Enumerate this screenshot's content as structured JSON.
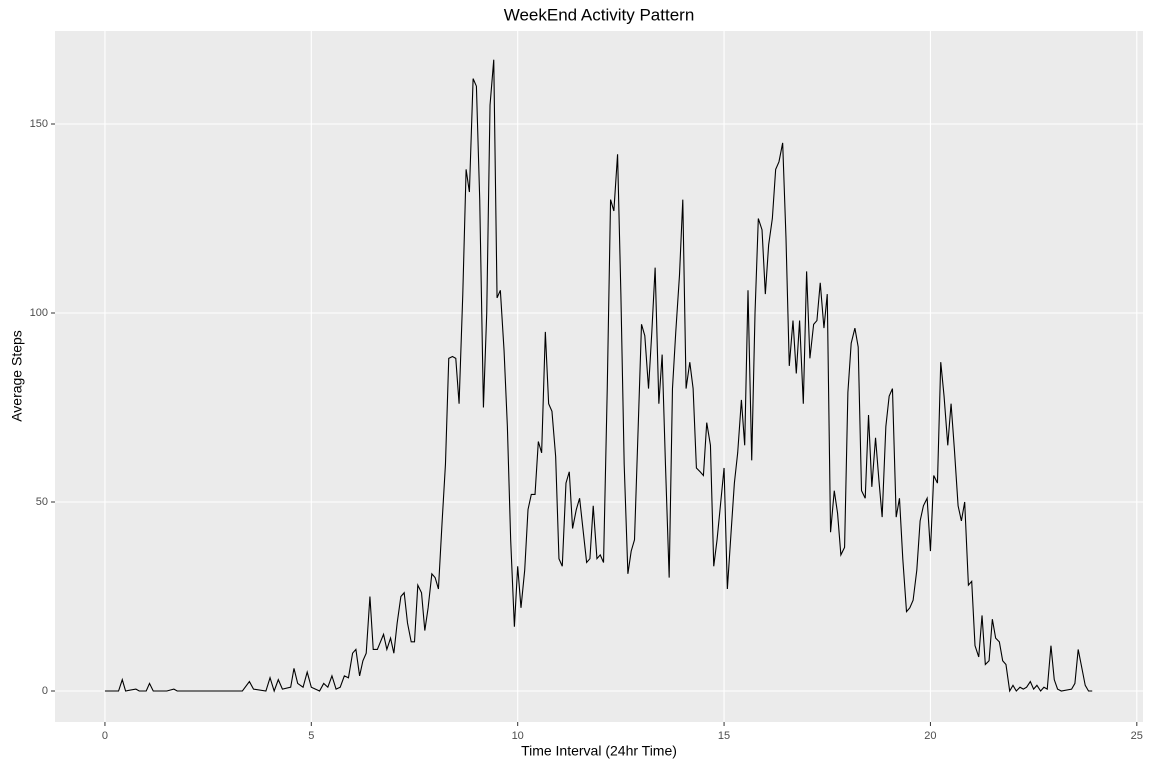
{
  "chart_data": {
    "type": "line",
    "title": "WeekEnd Activity Pattern",
    "x_label": "Time Interval (24hr Time)",
    "y_label": "Average Steps",
    "color": "#000000",
    "grid": true,
    "xlim": [
      -1.21,
      25.15
    ],
    "ylim": [
      -8.2,
      174.6
    ],
    "xticks": [
      0,
      5,
      10,
      15,
      20,
      25
    ],
    "yticks": [
      0,
      50,
      100,
      150
    ],
    "x": [
      0,
      0.33,
      0.42,
      0.5,
      0.75,
      0.83,
      1.0,
      1.08,
      1.17,
      1.5,
      1.67,
      1.75,
      2.0,
      3.33,
      3.5,
      3.6,
      3.9,
      4.0,
      4.1,
      4.2,
      4.3,
      4.5,
      4.58,
      4.67,
      4.8,
      4.9,
      5.0,
      5.2,
      5.3,
      5.4,
      5.5,
      5.6,
      5.7,
      5.8,
      5.9,
      6.0,
      6.08,
      6.17,
      6.25,
      6.33,
      6.42,
      6.5,
      6.6,
      6.75,
      6.83,
      6.92,
      7.0,
      7.08,
      7.17,
      7.25,
      7.33,
      7.42,
      7.5,
      7.58,
      7.67,
      7.75,
      7.83,
      7.92,
      8.0,
      8.08,
      8.17,
      8.25,
      8.33,
      8.42,
      8.5,
      8.58,
      8.67,
      8.75,
      8.83,
      8.92,
      9.0,
      9.08,
      9.17,
      9.25,
      9.33,
      9.42,
      9.5,
      9.58,
      9.67,
      9.75,
      9.83,
      9.92,
      10.0,
      10.08,
      10.17,
      10.25,
      10.33,
      10.42,
      10.5,
      10.58,
      10.67,
      10.75,
      10.83,
      10.92,
      11.0,
      11.08,
      11.17,
      11.25,
      11.33,
      11.42,
      11.5,
      11.58,
      11.67,
      11.75,
      11.83,
      11.92,
      12.0,
      12.08,
      12.17,
      12.25,
      12.33,
      12.42,
      12.5,
      12.58,
      12.67,
      12.75,
      12.83,
      12.92,
      13.0,
      13.08,
      13.17,
      13.25,
      13.33,
      13.42,
      13.5,
      13.58,
      13.67,
      13.75,
      13.83,
      13.92,
      14.0,
      14.08,
      14.17,
      14.25,
      14.33,
      14.42,
      14.5,
      14.58,
      14.67,
      14.75,
      14.83,
      14.92,
      15.0,
      15.08,
      15.17,
      15.25,
      15.33,
      15.42,
      15.5,
      15.58,
      15.67,
      15.75,
      15.83,
      15.92,
      16.0,
      16.08,
      16.17,
      16.25,
      16.33,
      16.42,
      16.5,
      16.58,
      16.67,
      16.75,
      16.83,
      16.92,
      17.0,
      17.08,
      17.17,
      17.25,
      17.33,
      17.42,
      17.5,
      17.58,
      17.67,
      17.75,
      17.83,
      17.92,
      18.0,
      18.08,
      18.17,
      18.25,
      18.33,
      18.42,
      18.5,
      18.58,
      18.67,
      18.75,
      18.83,
      18.92,
      19.0,
      19.08,
      19.17,
      19.25,
      19.33,
      19.42,
      19.5,
      19.58,
      19.67,
      19.75,
      19.83,
      19.92,
      20.0,
      20.08,
      20.17,
      20.25,
      20.33,
      20.42,
      20.5,
      20.58,
      20.67,
      20.75,
      20.83,
      20.92,
      21.0,
      21.08,
      21.17,
      21.25,
      21.33,
      21.42,
      21.5,
      21.58,
      21.67,
      21.75,
      21.83,
      21.92,
      22.0,
      22.08,
      22.17,
      22.25,
      22.33,
      22.42,
      22.5,
      22.58,
      22.67,
      22.75,
      22.83,
      22.92,
      23.0,
      23.08,
      23.17,
      23.42,
      23.5,
      23.58,
      23.67,
      23.75,
      23.83,
      23.92
    ],
    "values": [
      0,
      0,
      3,
      0,
      0.5,
      0,
      0,
      2,
      0,
      0,
      0.5,
      0,
      0,
      0,
      2.5,
      0.5,
      0,
      3.5,
      0,
      3,
      0.5,
      1,
      6,
      2,
      1,
      5,
      1,
      0,
      2,
      1,
      4,
      0.5,
      1,
      4,
      3.5,
      10,
      11,
      4,
      8,
      10,
      25,
      11,
      11,
      15,
      11,
      14,
      10,
      18,
      25,
      26,
      18,
      13,
      13,
      28,
      26,
      16,
      22,
      31,
      30,
      27,
      45,
      60,
      88,
      88.5,
      88,
      76,
      105,
      138,
      132,
      162,
      160,
      130,
      75,
      100,
      155,
      167,
      104,
      106,
      90,
      70,
      40,
      17,
      33,
      22,
      32,
      48,
      52,
      52,
      66,
      63,
      95,
      76,
      74,
      62,
      35,
      33,
      55,
      58,
      43,
      48,
      51,
      43,
      34,
      35,
      49,
      35,
      36,
      34,
      80,
      130,
      127,
      142,
      105,
      60,
      31,
      37,
      40,
      70,
      97,
      94,
      80,
      95,
      112,
      76,
      89,
      60,
      30,
      80,
      95,
      110,
      130,
      80,
      87,
      80,
      59,
      58,
      57,
      71,
      65,
      33,
      40,
      50,
      59,
      27,
      42,
      55,
      63,
      77,
      65,
      106,
      61,
      100,
      125,
      122,
      105,
      118,
      125,
      138,
      140,
      145,
      120,
      86,
      98,
      84,
      98,
      76,
      111,
      88,
      97,
      98,
      108,
      96,
      105,
      42,
      53,
      47,
      36,
      38,
      79,
      92,
      96,
      91,
      53,
      51,
      73,
      54,
      67,
      56,
      46,
      70,
      78,
      80,
      46,
      51,
      35,
      21,
      22,
      24,
      32,
      45,
      49,
      51,
      37,
      57,
      55,
      87,
      78,
      65,
      76,
      64,
      49,
      45,
      50,
      28,
      29,
      12,
      9,
      20,
      7,
      8,
      19,
      14,
      13,
      8,
      7,
      0,
      1.5,
      0,
      1,
      0.5,
      1,
      2.5,
      0.5,
      1.5,
      0,
      1,
      0.5,
      12,
      3,
      0.5,
      0,
      0.5,
      2,
      11,
      6,
      1.5,
      0,
      0
    ]
  }
}
